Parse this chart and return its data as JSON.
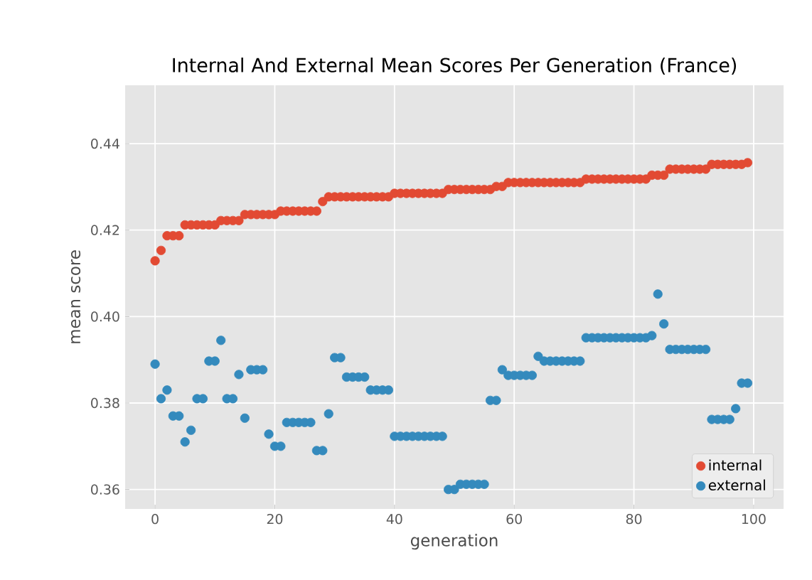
{
  "chart_data": {
    "type": "scatter",
    "title": "Internal And External Mean Scores Per Generation (France)",
    "xlabel": "generation",
    "ylabel": "mean score",
    "x": [
      0,
      1,
      2,
      3,
      4,
      5,
      6,
      7,
      8,
      9,
      10,
      11,
      12,
      13,
      14,
      15,
      16,
      17,
      18,
      19,
      20,
      21,
      22,
      23,
      24,
      25,
      26,
      27,
      28,
      29,
      30,
      31,
      32,
      33,
      34,
      35,
      36,
      37,
      38,
      39,
      40,
      41,
      42,
      43,
      44,
      45,
      46,
      47,
      48,
      49,
      50,
      51,
      52,
      53,
      54,
      55,
      56,
      57,
      58,
      59,
      60,
      61,
      62,
      63,
      64,
      65,
      66,
      67,
      68,
      69,
      70,
      71,
      72,
      73,
      74,
      75,
      76,
      77,
      78,
      79,
      80,
      81,
      82,
      83,
      84,
      85,
      86,
      87,
      88,
      89,
      90,
      91,
      92,
      93,
      94,
      95,
      96,
      97,
      98,
      99
    ],
    "series": [
      {
        "name": "internal",
        "color": "#e24a33",
        "values": [
          0.4129,
          0.4153,
          0.4187,
          0.4187,
          0.4187,
          0.4212,
          0.4212,
          0.4212,
          0.4212,
          0.4212,
          0.4212,
          0.4222,
          0.4222,
          0.4222,
          0.4222,
          0.4236,
          0.4236,
          0.4236,
          0.4236,
          0.4236,
          0.4236,
          0.4244,
          0.4244,
          0.4244,
          0.4244,
          0.4244,
          0.4244,
          0.4244,
          0.4266,
          0.4277,
          0.4277,
          0.4277,
          0.4277,
          0.4277,
          0.4277,
          0.4277,
          0.4277,
          0.4277,
          0.4277,
          0.4277,
          0.4285,
          0.4285,
          0.4285,
          0.4285,
          0.4285,
          0.4285,
          0.4285,
          0.4285,
          0.4285,
          0.4294,
          0.4294,
          0.4294,
          0.4294,
          0.4294,
          0.4294,
          0.4294,
          0.4294,
          0.4301,
          0.4301,
          0.431,
          0.431,
          0.431,
          0.431,
          0.431,
          0.431,
          0.431,
          0.431,
          0.431,
          0.431,
          0.431,
          0.431,
          0.431,
          0.4318,
          0.4318,
          0.4318,
          0.4318,
          0.4318,
          0.4318,
          0.4318,
          0.4318,
          0.4318,
          0.4318,
          0.4318,
          0.4327,
          0.4327,
          0.4327,
          0.4341,
          0.4341,
          0.4341,
          0.4341,
          0.4341,
          0.4341,
          0.4341,
          0.4352,
          0.4352,
          0.4352,
          0.4352,
          0.4352,
          0.4352,
          0.4356
        ]
      },
      {
        "name": "external",
        "color": "#348abd",
        "values": [
          0.389,
          0.381,
          0.383,
          0.377,
          0.377,
          0.371,
          0.3737,
          0.381,
          0.381,
          0.3897,
          0.3897,
          0.3945,
          0.381,
          0.381,
          0.3866,
          0.3765,
          0.3877,
          0.3877,
          0.3877,
          0.3728,
          0.37,
          0.37,
          0.3755,
          0.3755,
          0.3755,
          0.3755,
          0.3755,
          0.369,
          0.369,
          0.3775,
          0.3905,
          0.3905,
          0.386,
          0.386,
          0.386,
          0.386,
          0.383,
          0.383,
          0.383,
          0.383,
          0.3723,
          0.3723,
          0.3723,
          0.3723,
          0.3723,
          0.3723,
          0.3723,
          0.3723,
          0.3723,
          0.36,
          0.36,
          0.3612,
          0.3612,
          0.3612,
          0.3612,
          0.3612,
          0.3806,
          0.3806,
          0.3877,
          0.3864,
          0.3864,
          0.3864,
          0.3864,
          0.3864,
          0.3908,
          0.3897,
          0.3897,
          0.3897,
          0.3897,
          0.3897,
          0.3897,
          0.3897,
          0.3951,
          0.3951,
          0.3951,
          0.3951,
          0.3951,
          0.3951,
          0.3951,
          0.3951,
          0.3951,
          0.3951,
          0.3951,
          0.3956,
          0.4052,
          0.3983,
          0.3924,
          0.3924,
          0.3924,
          0.3924,
          0.3924,
          0.3924,
          0.3924,
          0.3762,
          0.3762,
          0.3762,
          0.3762,
          0.3787,
          0.3846,
          0.3846
        ]
      }
    ],
    "xlim": [
      -5,
      105
    ],
    "ylim": [
      0.3555,
      0.4535
    ],
    "xticks": [
      0,
      20,
      40,
      60,
      80,
      100
    ],
    "yticks": [
      0.36,
      0.38,
      {
        "value": 0.4,
        "label": "0.40"
      },
      0.42,
      0.44
    ],
    "grid": true,
    "legend": "bottom right",
    "marker": "circle"
  }
}
